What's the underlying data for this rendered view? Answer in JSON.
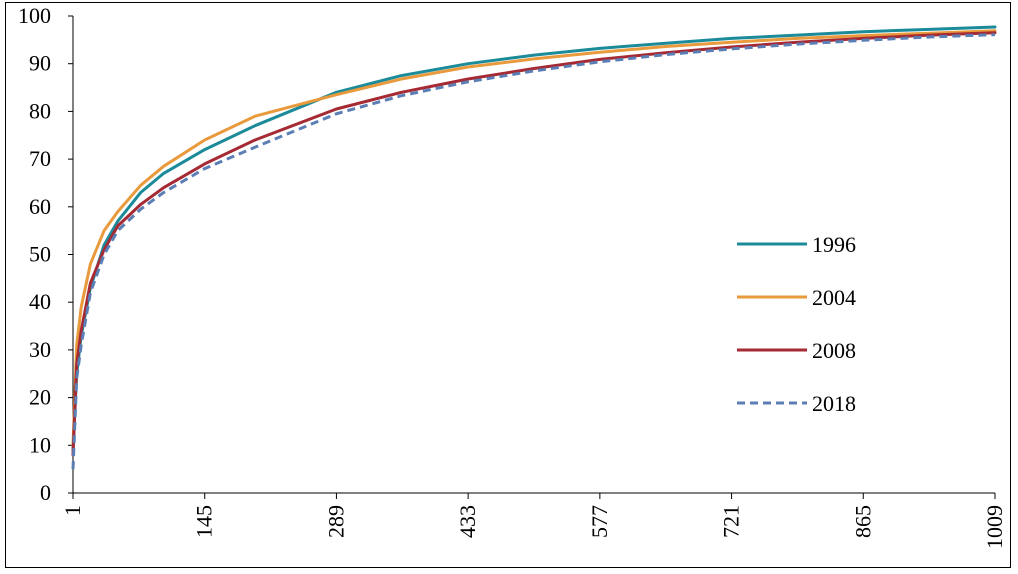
{
  "chart_data": {
    "type": "line",
    "title": "",
    "xlabel": "",
    "ylabel": "",
    "xlim": [
      1,
      1009
    ],
    "ylim": [
      0,
      100
    ],
    "x_ticks": [
      1,
      145,
      289,
      433,
      577,
      721,
      865,
      1009
    ],
    "y_ticks": [
      0,
      10,
      20,
      30,
      40,
      50,
      60,
      70,
      80,
      90,
      100
    ],
    "grid": false,
    "legend_position": "right",
    "series": [
      {
        "name": "1996",
        "color": "#1b8a99",
        "dash": "solid",
        "x": [
          1,
          5,
          10,
          20,
          35,
          50,
          75,
          100,
          145,
          200,
          289,
          360,
          433,
          505,
          577,
          649,
          721,
          793,
          865,
          937,
          1009
        ],
        "y": [
          9,
          25,
          33,
          43,
          52,
          57,
          63,
          67,
          72,
          77,
          84,
          87.5,
          90,
          91.8,
          93.2,
          94.3,
          95.3,
          96,
          96.7,
          97.2,
          97.7
        ]
      },
      {
        "name": "2004",
        "color": "#e89a3c",
        "dash": "solid",
        "x": [
          1,
          5,
          10,
          20,
          35,
          50,
          75,
          100,
          145,
          200,
          289,
          360,
          433,
          505,
          577,
          649,
          721,
          793,
          865,
          937,
          1009
        ],
        "y": [
          10,
          31,
          39,
          48,
          55,
          59,
          64.5,
          68.5,
          74,
          79,
          83.5,
          86.8,
          89.3,
          91,
          92.4,
          93.6,
          94.5,
          95.3,
          95.9,
          96.4,
          96.9
        ]
      },
      {
        "name": "2008",
        "color": "#a52a34",
        "dash": "solid",
        "x": [
          1,
          5,
          10,
          20,
          35,
          50,
          75,
          100,
          145,
          200,
          289,
          360,
          433,
          505,
          577,
          649,
          721,
          793,
          865,
          937,
          1009
        ],
        "y": [
          8,
          27,
          34,
          44,
          51,
          56,
          60.5,
          64,
          69,
          74,
          80.5,
          84,
          86.8,
          89,
          90.9,
          92.3,
          93.5,
          94.5,
          95.3,
          96,
          96.5
        ]
      },
      {
        "name": "2018",
        "color": "#5b7fb5",
        "dash": "dashed",
        "x": [
          1,
          5,
          10,
          20,
          35,
          50,
          75,
          100,
          145,
          200,
          289,
          360,
          433,
          505,
          577,
          649,
          721,
          793,
          865,
          937,
          1009
        ],
        "y": [
          5,
          24,
          31,
          42,
          50,
          55,
          59.5,
          63,
          68,
          72.5,
          79.5,
          83.3,
          86.2,
          88.5,
          90.4,
          91.9,
          93.1,
          94.1,
          94.9,
          95.6,
          96.1
        ]
      }
    ]
  }
}
